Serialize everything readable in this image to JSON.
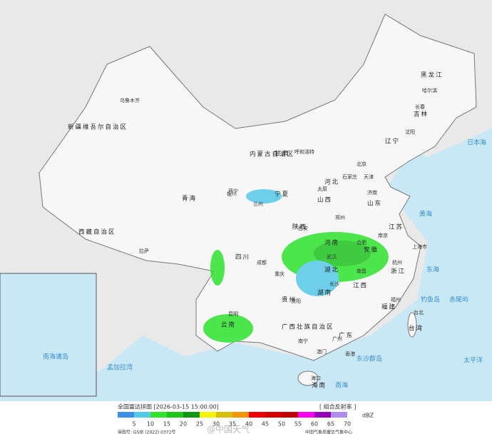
{
  "map": {
    "provinces": [
      "新疆维吾尔自治区",
      "西藏自治区",
      "青海",
      "甘肃",
      "内蒙古自治区",
      "黑龙江",
      "吉林",
      "辽宁",
      "河北",
      "山西",
      "山东",
      "陕西",
      "河南",
      "四川",
      "湖北",
      "江苏",
      "安徽",
      "浙江",
      "湖南",
      "江西",
      "贵州",
      "云南",
      "广西壮族自治区",
      "广东",
      "福建",
      "台湾",
      "海南",
      "宁夏"
    ],
    "cities": [
      "乌鲁木齐",
      "哈尔滨",
      "长春",
      "沈阳",
      "呼和浩特",
      "北京",
      "天津",
      "石家庄",
      "太原",
      "济南",
      "银川",
      "兰州",
      "西宁",
      "西安",
      "郑州",
      "成都",
      "重庆",
      "武汉",
      "合肥",
      "南京",
      "上海市",
      "杭州",
      "长沙",
      "南昌",
      "贵阳",
      "昆明",
      "南宁",
      "广州",
      "福州",
      "台北",
      "香港",
      "澳门",
      "海口",
      "拉萨"
    ],
    "seas": [
      "日本海",
      "黄海",
      "东海",
      "太平洋",
      "南海",
      "孟加拉湾",
      "钓鱼岛",
      "赤尾屿",
      "东沙群岛",
      "南海诸岛"
    ]
  },
  "legend": {
    "title": "全国雷达拼图 [2026-03-15 15:00:00]",
    "product": "[ 组合反射率 ]",
    "unit": "dBZ",
    "colors": [
      "#3d8ee5",
      "#56c9e8",
      "#2fe32f",
      "#1fc41f",
      "#129612",
      "#f3f300",
      "#d8c000",
      "#f29500",
      "#f00000",
      "#d40000",
      "#c00000",
      "#ff00f0",
      "#9600b4",
      "#b08cf0"
    ],
    "ticks": [
      5,
      10,
      15,
      20,
      25,
      30,
      35,
      40,
      45,
      50,
      55,
      60,
      65,
      70
    ],
    "approval": "审图号: GS京 (2022) 0372号",
    "source": "中国气象局雷达气象中心",
    "watermark": "@中国天气"
  }
}
